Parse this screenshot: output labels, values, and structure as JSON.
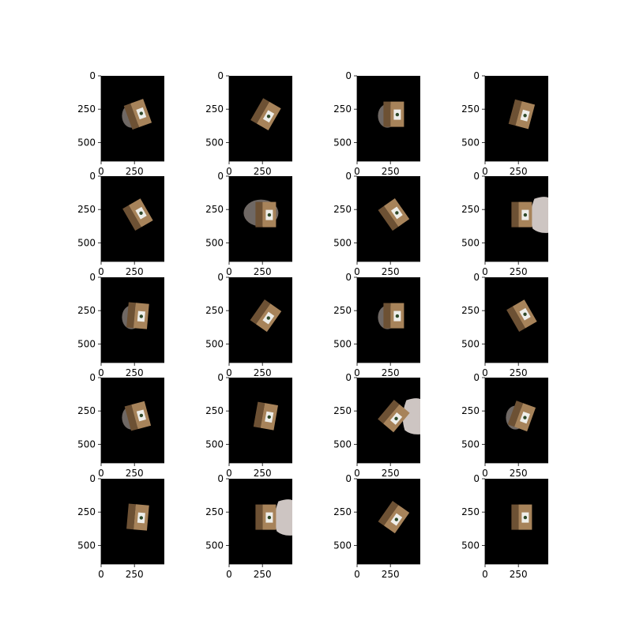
{
  "figure": {
    "rows": 5,
    "cols": 4,
    "background": "#ffffff",
    "image_background": "#000000",
    "box_colors": {
      "light_face": "#a7835a",
      "dark_face": "#6d5134",
      "label": "#eeeeea",
      "shadow": "#6f6864",
      "pale_blob": "#cdc5c2"
    },
    "axis": {
      "y_tick_labels": [
        "0",
        "250",
        "500"
      ],
      "x_tick_labels": [
        "0",
        "250"
      ]
    },
    "panels": [
      {
        "row": 1,
        "col": 1,
        "subject": "cardboard-box",
        "orientation_deg": -20,
        "extra": "shadow-left"
      },
      {
        "row": 1,
        "col": 2,
        "subject": "cardboard-box",
        "orientation_deg": 30,
        "extra": "none"
      },
      {
        "row": 1,
        "col": 3,
        "subject": "cardboard-box",
        "orientation_deg": 0,
        "extra": "shadow-left"
      },
      {
        "row": 1,
        "col": 4,
        "subject": "cardboard-box",
        "orientation_deg": 15,
        "extra": "none"
      },
      {
        "row": 2,
        "col": 1,
        "subject": "cardboard-box",
        "orientation_deg": -30,
        "extra": "none"
      },
      {
        "row": 2,
        "col": 2,
        "subject": "cardboard-box",
        "orientation_deg": 0,
        "extra": "shadow-blob"
      },
      {
        "row": 2,
        "col": 3,
        "subject": "cardboard-box",
        "orientation_deg": -35,
        "extra": "none"
      },
      {
        "row": 2,
        "col": 4,
        "subject": "cardboard-box",
        "orientation_deg": 0,
        "extra": "pale-blob-right"
      },
      {
        "row": 3,
        "col": 1,
        "subject": "cardboard-box",
        "orientation_deg": 5,
        "extra": "shadow-left"
      },
      {
        "row": 3,
        "col": 2,
        "subject": "cardboard-box",
        "orientation_deg": 35,
        "extra": "none"
      },
      {
        "row": 3,
        "col": 3,
        "subject": "cardboard-box",
        "orientation_deg": 0,
        "extra": "shadow-left"
      },
      {
        "row": 3,
        "col": 4,
        "subject": "cardboard-box",
        "orientation_deg": -30,
        "extra": "none"
      },
      {
        "row": 4,
        "col": 1,
        "subject": "cardboard-box",
        "orientation_deg": -15,
        "extra": "shadow-left"
      },
      {
        "row": 4,
        "col": 2,
        "subject": "cardboard-box",
        "orientation_deg": 10,
        "extra": "none"
      },
      {
        "row": 4,
        "col": 3,
        "subject": "cardboard-box",
        "orientation_deg": 40,
        "extra": "pale-blob-right"
      },
      {
        "row": 4,
        "col": 4,
        "subject": "cardboard-box",
        "orientation_deg": 20,
        "extra": "shadow-left"
      },
      {
        "row": 5,
        "col": 1,
        "subject": "cardboard-box",
        "orientation_deg": 5,
        "extra": "none"
      },
      {
        "row": 5,
        "col": 2,
        "subject": "cardboard-box",
        "orientation_deg": 0,
        "extra": "pale-blob-right"
      },
      {
        "row": 5,
        "col": 3,
        "subject": "cardboard-box",
        "orientation_deg": 35,
        "extra": "none"
      },
      {
        "row": 5,
        "col": 4,
        "subject": "cardboard-box",
        "orientation_deg": 0,
        "extra": "none"
      }
    ]
  }
}
